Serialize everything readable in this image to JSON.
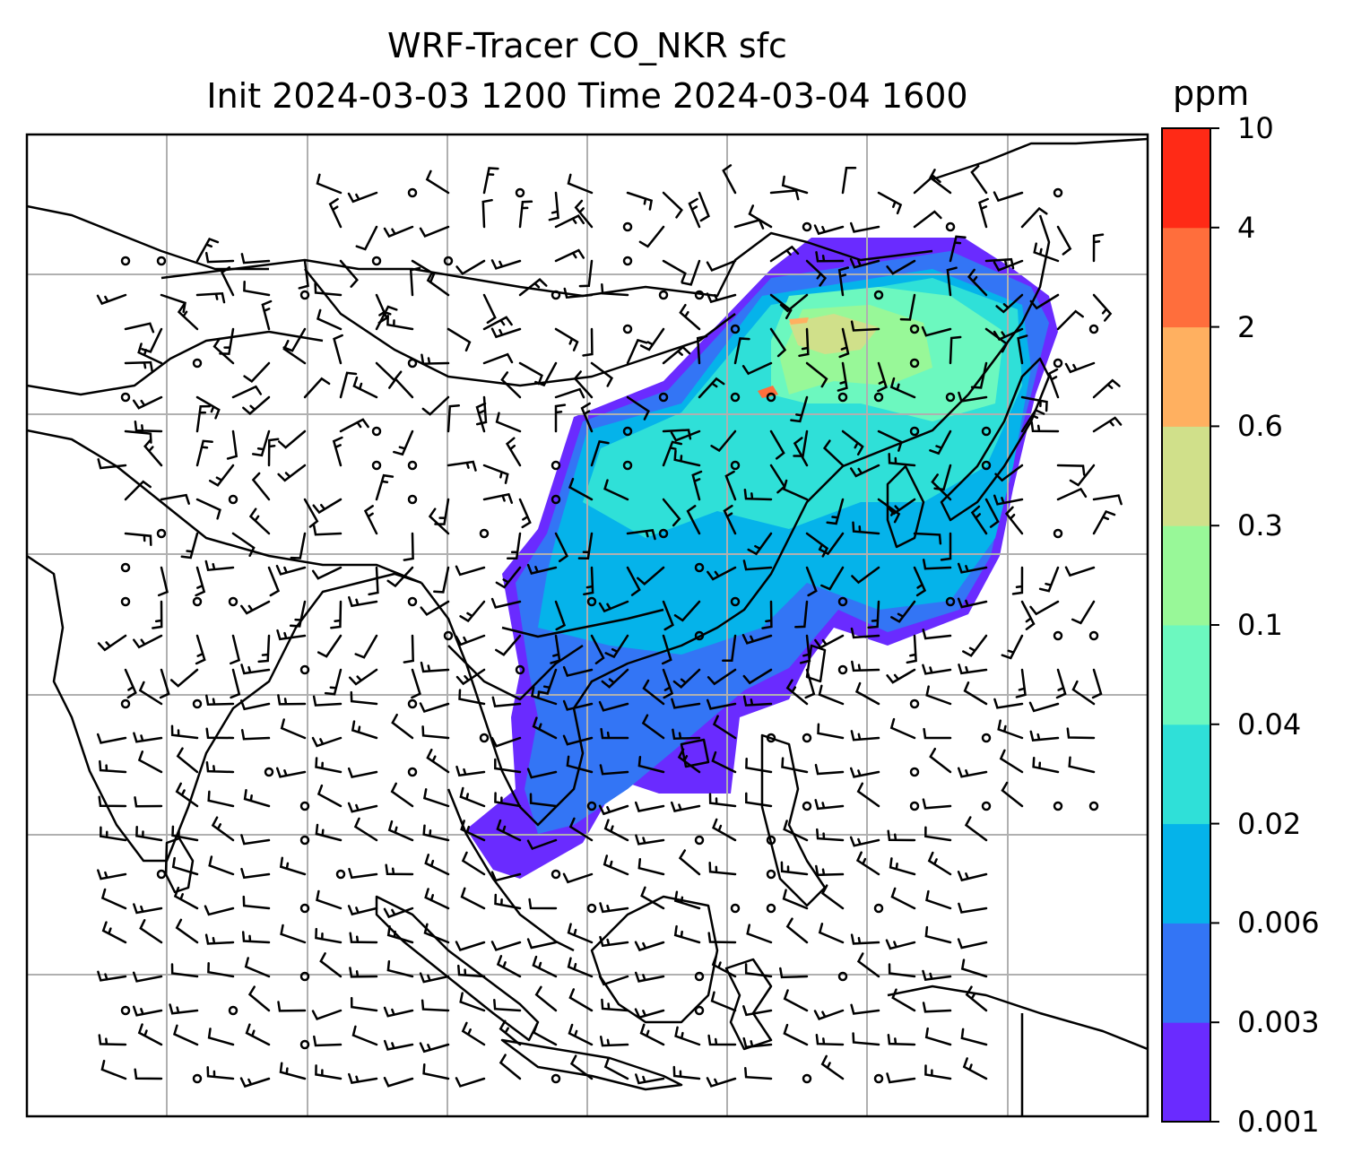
{
  "title": {
    "line1": "WRF-Tracer CO_NKR sfc",
    "line2": "Init 2024-03-03 1200 Time 2024-03-04 1600"
  },
  "colorbar": {
    "unit": "ppm",
    "levels": [
      "0.001",
      "0.003",
      "0.006",
      "0.02",
      "0.04",
      "0.1",
      "0.3",
      "0.6",
      "2",
      "4",
      "10"
    ],
    "colors": [
      "#6a2bff",
      "#3375f5",
      "#05b3ea",
      "#2fe0d8",
      "#6cf8bf",
      "#98f898",
      "#d0e08a",
      "#ffb060",
      "#ff6e3c",
      "#ff2a16"
    ]
  },
  "map": {
    "field": "CO_NKR surface tracer concentration",
    "wind_symbols": "wind barbs",
    "gridlines": true
  }
}
